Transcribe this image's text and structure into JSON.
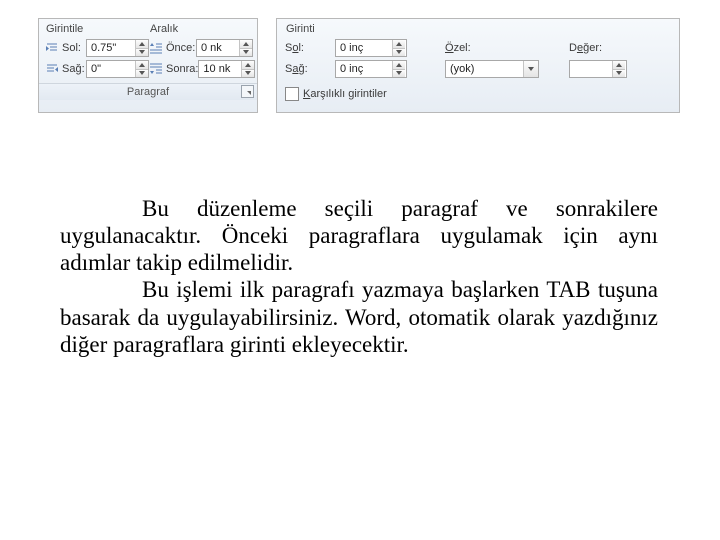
{
  "left_panel": {
    "indent": {
      "header": "Girintile",
      "left_label": "Sol:",
      "left_value": "0.75\"",
      "right_label": "Sağ:",
      "right_value": "0\""
    },
    "spacing": {
      "header": "Aralık",
      "before_label": "Önce:",
      "before_value": "0 nk",
      "after_label": "Sonra:",
      "after_value": "10 nk"
    },
    "footer": "Paragraf"
  },
  "right_panel": {
    "header": "Girinti",
    "left_label_html": "S<span class=\"underline-char\">o</span>l:",
    "left_value": "0 inç",
    "right_label_html": "S<span class=\"underline-char\">a</span>ğ:",
    "right_value": "0 inç",
    "special_label_html": "<span class=\"underline-char\">Ö</span>zel:",
    "special_value": "(yok)",
    "value_label_html": "D<span class=\"underline-char\">e</span>ğer:",
    "value_value": "",
    "mirror_label_html": "<span class=\"underline-char\">K</span>arşılıklı girintiler"
  },
  "body": {
    "p1": "Bu düzenleme seçili paragraf ve sonrakilere uygulanacaktır. Önceki paragraflara uygulamak için aynı adımlar takip edilmelidir.",
    "p2": "Bu işlemi ilk paragrafı yazmaya başlarken TAB tuşuna basarak da uygulayabilirsiniz. Word, otomatik olarak yazdığınız diğer paragraflara girinti ekleyecektir."
  }
}
